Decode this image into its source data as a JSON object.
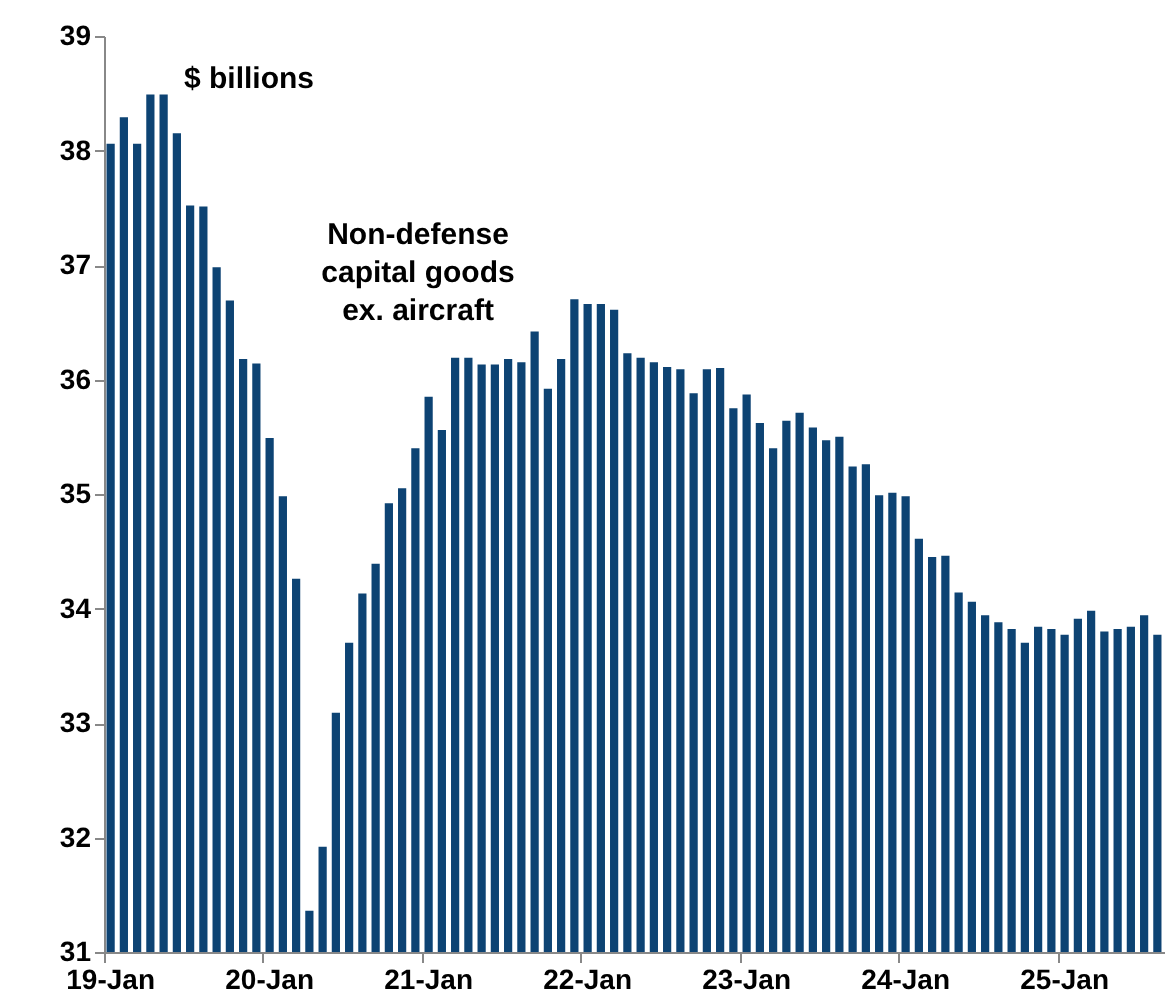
{
  "chart_data": {
    "type": "bar",
    "categories": [
      "19-Jan",
      null,
      null,
      null,
      null,
      null,
      null,
      null,
      null,
      null,
      null,
      null,
      "20-Jan",
      null,
      null,
      null,
      null,
      null,
      null,
      null,
      null,
      null,
      null,
      null,
      "21-Jan",
      null,
      null,
      null,
      null,
      null,
      null,
      null,
      null,
      null,
      null,
      null,
      "22-Jan",
      null,
      null,
      null,
      null,
      null,
      null,
      null,
      null,
      null,
      null,
      null,
      "23-Jan",
      null,
      null,
      null,
      null,
      null,
      null,
      null,
      null,
      null,
      null,
      null,
      "24-Jan",
      null,
      null,
      null,
      null,
      null,
      null,
      null,
      null,
      null,
      null,
      null,
      "25-Jan",
      null,
      null,
      null,
      null,
      null,
      null,
      null
    ],
    "values": [
      38.06,
      38.29,
      38.06,
      38.49,
      38.49,
      38.15,
      37.52,
      37.51,
      36.98,
      36.69,
      36.18,
      36.14,
      35.49,
      34.98,
      34.26,
      31.36,
      31.92,
      33.09,
      33.7,
      34.13,
      34.39,
      34.92,
      35.05,
      35.4,
      35.85,
      35.56,
      36.19,
      36.19,
      36.13,
      36.13,
      36.18,
      36.15,
      36.42,
      35.92,
      36.18,
      36.7,
      36.66,
      36.66,
      36.61,
      36.23,
      36.19,
      36.15,
      36.11,
      36.09,
      35.88,
      36.09,
      36.1,
      35.75,
      35.87,
      35.62,
      35.4,
      35.64,
      35.71,
      35.58,
      35.47,
      35.5,
      35.24,
      35.26,
      34.99,
      35.01,
      34.98,
      34.61,
      34.45,
      34.46,
      34.14,
      34.06,
      33.94,
      33.88,
      33.82,
      33.7,
      33.84,
      33.82,
      33.77,
      33.91,
      33.98,
      33.8,
      33.82,
      33.84,
      33.94,
      33.77
    ],
    "color": "#0d4373",
    "ylim": [
      31,
      39
    ],
    "yticks": [
      31,
      32,
      33,
      34,
      35,
      36,
      37,
      38,
      39
    ],
    "grid": false,
    "annotations": [
      "$ billions",
      "Non-defense\ncapital goods\nex. aircraft"
    ]
  }
}
